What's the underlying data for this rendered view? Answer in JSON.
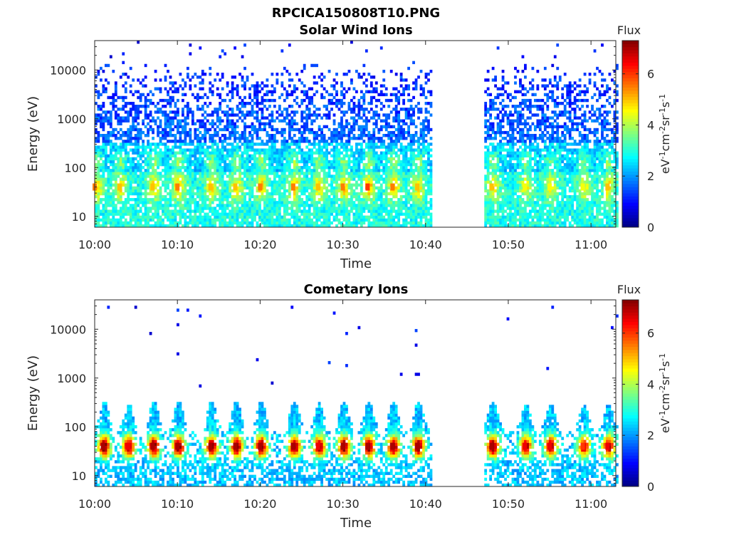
{
  "figure_title": "RPCICA150808T10.PNG",
  "chart_data": [
    {
      "type": "heatmap",
      "title": "Solar Wind Ions",
      "xlabel": "Time",
      "ylabel": "Energy (eV)",
      "x_tick_labels": [
        "10:00",
        "10:10",
        "10:20",
        "10:30",
        "10:40",
        "10:50",
        "11:00"
      ],
      "x_range": [
        "10:00",
        "11:03"
      ],
      "y_tick_labels": [
        "10",
        "100",
        "1000",
        "10000"
      ],
      "y_tick_values": [
        10,
        100,
        1000,
        10000
      ],
      "y_scale": "log",
      "y_range": [
        6,
        40000
      ],
      "data_gap": [
        "10:40:30",
        "10:47:00"
      ],
      "colorbar": {
        "label_top": "Flux",
        "label_side": "eV-1cm-2sr-1s-1",
        "ticks": [
          "0",
          "2",
          "4",
          "6"
        ],
        "range": [
          0,
          7.3
        ],
        "colormap": "jet"
      },
      "series": [
        {
          "time": "10:00",
          "peak_energy_eV": 40,
          "peak_flux": 5.5
        },
        {
          "time": "10:03",
          "peak_energy_eV": 40,
          "peak_flux": 5.0
        },
        {
          "time": "10:07",
          "peak_energy_eV": 40,
          "peak_flux": 5.0
        },
        {
          "time": "10:10",
          "peak_energy_eV": 40,
          "peak_flux": 5.5
        },
        {
          "time": "10:14",
          "peak_energy_eV": 40,
          "peak_flux": 5.0
        },
        {
          "time": "10:17",
          "peak_energy_eV": 40,
          "peak_flux": 5.0
        },
        {
          "time": "10:20",
          "peak_energy_eV": 40,
          "peak_flux": 5.5
        },
        {
          "time": "10:24",
          "peak_energy_eV": 40,
          "peak_flux": 5.5
        },
        {
          "time": "10:27",
          "peak_energy_eV": 40,
          "peak_flux": 5.0
        },
        {
          "time": "10:30",
          "peak_energy_eV": 40,
          "peak_flux": 5.5
        },
        {
          "time": "10:33",
          "peak_energy_eV": 40,
          "peak_flux": 6.0
        },
        {
          "time": "10:36",
          "peak_energy_eV": 40,
          "peak_flux": 5.5
        },
        {
          "time": "10:39",
          "peak_energy_eV": 40,
          "peak_flux": 5.0
        },
        {
          "time": "10:48",
          "peak_energy_eV": 40,
          "peak_flux": 5.0
        },
        {
          "time": "10:52",
          "peak_energy_eV": 40,
          "peak_flux": 4.5
        },
        {
          "time": "10:55",
          "peak_energy_eV": 40,
          "peak_flux": 4.5
        },
        {
          "time": "10:59",
          "peak_energy_eV": 40,
          "peak_flux": 4.5
        },
        {
          "time": "11:02",
          "peak_energy_eV": 40,
          "peak_flux": 5.0
        }
      ]
    },
    {
      "type": "heatmap",
      "title": "Cometary Ions",
      "xlabel": "Time",
      "ylabel": "Energy (eV)",
      "x_tick_labels": [
        "10:00",
        "10:10",
        "10:20",
        "10:30",
        "10:40",
        "10:50",
        "11:00"
      ],
      "x_range": [
        "10:00",
        "11:03"
      ],
      "y_tick_labels": [
        "10",
        "100",
        "1000",
        "10000"
      ],
      "y_tick_values": [
        10,
        100,
        1000,
        10000
      ],
      "y_scale": "log",
      "y_range": [
        6,
        40000
      ],
      "data_gap": [
        "10:40:30",
        "10:47:00"
      ],
      "colorbar": {
        "label_top": "Flux",
        "label_side": "eV-1cm-2sr-1s-1",
        "ticks": [
          "0",
          "2",
          "4",
          "6"
        ],
        "range": [
          0,
          7.3
        ],
        "colormap": "jet"
      },
      "series": [
        {
          "time": "10:01",
          "peak_energy_eV": 40,
          "peak_flux": 7.0
        },
        {
          "time": "10:04",
          "peak_energy_eV": 40,
          "peak_flux": 6.5
        },
        {
          "time": "10:07",
          "peak_energy_eV": 40,
          "peak_flux": 7.0
        },
        {
          "time": "10:10",
          "peak_energy_eV": 40,
          "peak_flux": 7.0
        },
        {
          "time": "10:14",
          "peak_energy_eV": 40,
          "peak_flux": 7.0
        },
        {
          "time": "10:17",
          "peak_energy_eV": 40,
          "peak_flux": 7.0
        },
        {
          "time": "10:20",
          "peak_energy_eV": 40,
          "peak_flux": 7.0
        },
        {
          "time": "10:24",
          "peak_energy_eV": 40,
          "peak_flux": 7.0
        },
        {
          "time": "10:27",
          "peak_energy_eV": 40,
          "peak_flux": 6.5
        },
        {
          "time": "10:30",
          "peak_energy_eV": 40,
          "peak_flux": 7.0
        },
        {
          "time": "10:33",
          "peak_energy_eV": 40,
          "peak_flux": 7.0
        },
        {
          "time": "10:36",
          "peak_energy_eV": 40,
          "peak_flux": 7.0
        },
        {
          "time": "10:39",
          "peak_energy_eV": 40,
          "peak_flux": 7.0
        },
        {
          "time": "10:48",
          "peak_energy_eV": 40,
          "peak_flux": 7.0
        },
        {
          "time": "10:52",
          "peak_energy_eV": 40,
          "peak_flux": 6.5
        },
        {
          "time": "10:55",
          "peak_energy_eV": 40,
          "peak_flux": 6.5
        },
        {
          "time": "10:59",
          "peak_energy_eV": 40,
          "peak_flux": 6.0
        },
        {
          "time": "11:02",
          "peak_energy_eV": 40,
          "peak_flux": 6.5
        }
      ]
    }
  ]
}
